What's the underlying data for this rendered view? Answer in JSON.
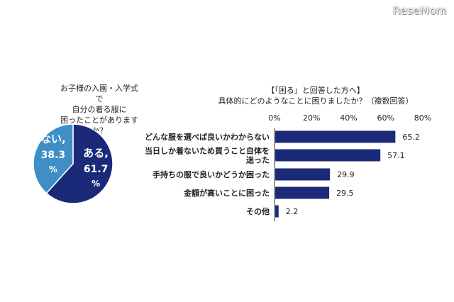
{
  "logo": {
    "text": "ReseMom"
  },
  "pie": {
    "title_lines": [
      "お子様の入園・入学式で",
      "自分の着る服に",
      "困ったことがありますか？"
    ]
  },
  "bar": {
    "title_lines": [
      "【「困る」と回答した方へ】",
      "具体的にどのようなことに困りましたか？（複数回答）"
    ]
  },
  "chart_data": [
    {
      "type": "pie",
      "slices": [
        {
          "label": "ある,",
          "value": 61.7,
          "value_text": "61.7",
          "unit": "%",
          "color": "#1b2a78"
        },
        {
          "label": "ない,",
          "value": 38.3,
          "value_text": "38.3",
          "unit": "%",
          "color": "#3f8fc6"
        }
      ]
    },
    {
      "type": "bar",
      "orientation": "horizontal",
      "categories": [
        [
          "どんな服を選べば良いかわからない"
        ],
        [
          "当日しか着ないため買うこと自体を",
          "迷った"
        ],
        [
          "手持ちの服で良いかどうか困った"
        ],
        [
          "金額が高いことに困った"
        ],
        [
          "その他"
        ]
      ],
      "values": [
        65.2,
        57.1,
        29.9,
        29.5,
        2.2
      ],
      "xlim": [
        0,
        80
      ],
      "xticks": [
        "0%",
        "20%",
        "40%",
        "60%",
        "80%"
      ],
      "xtick_values": [
        0,
        20,
        40,
        60,
        80
      ],
      "bar_color": "#1b2a78",
      "grid": false
    }
  ]
}
